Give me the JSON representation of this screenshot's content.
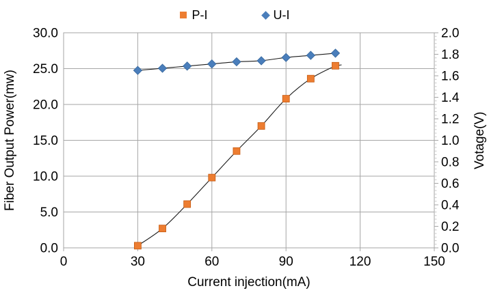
{
  "legend": {
    "position": "top-center",
    "items": [
      {
        "label": "P-I",
        "marker": "square-icon",
        "color": "#ED7D31"
      },
      {
        "label": "U-I",
        "marker": "diamond-icon",
        "color": "#4A7EBB"
      }
    ]
  },
  "chart_data": {
    "type": "scatter",
    "subtype": "points-with-smooth-fit-line",
    "title": "",
    "xlabel": "Current injection(mA)",
    "ylabel_left": "Fiber Output Power(mw)",
    "ylabel_right": "Votage(V)",
    "xlim": [
      0,
      150
    ],
    "ylim_left": [
      0.0,
      30.0
    ],
    "ylim_right": [
      0.0,
      2.0
    ],
    "grid": true,
    "legend_position": "top-center",
    "x_ticks": [
      "0",
      "30",
      "60",
      "90",
      "120",
      "150"
    ],
    "y_ticks_left": [
      "0.0",
      "5.0",
      "10.0",
      "15.0",
      "20.0",
      "25.0",
      "30.0"
    ],
    "y_ticks_right": [
      "0.0",
      "0.2",
      "0.4",
      "0.6",
      "0.8",
      "1.0",
      "1.2",
      "1.4",
      "1.6",
      "1.8",
      "2.0"
    ],
    "x": [
      30,
      40,
      50,
      60,
      70,
      80,
      90,
      100,
      110
    ],
    "series": [
      {
        "name": "P-I",
        "axis": "left",
        "marker": "square",
        "color": "#ED7D31",
        "border": "#C55A11",
        "values": [
          0.3,
          2.7,
          6.1,
          9.8,
          13.5,
          17.0,
          20.8,
          23.6,
          25.4
        ]
      },
      {
        "name": "U-I",
        "axis": "right",
        "marker": "diamond",
        "color": "#4A7EBB",
        "border": "#35669B",
        "values": [
          1.65,
          1.67,
          1.69,
          1.71,
          1.73,
          1.74,
          1.77,
          1.79,
          1.81
        ]
      }
    ],
    "colors": {
      "grid": "#A6A6A6",
      "minor_tick": "#C9C9C9",
      "fit_line": "#1A1A1A",
      "text": "#000000"
    }
  }
}
